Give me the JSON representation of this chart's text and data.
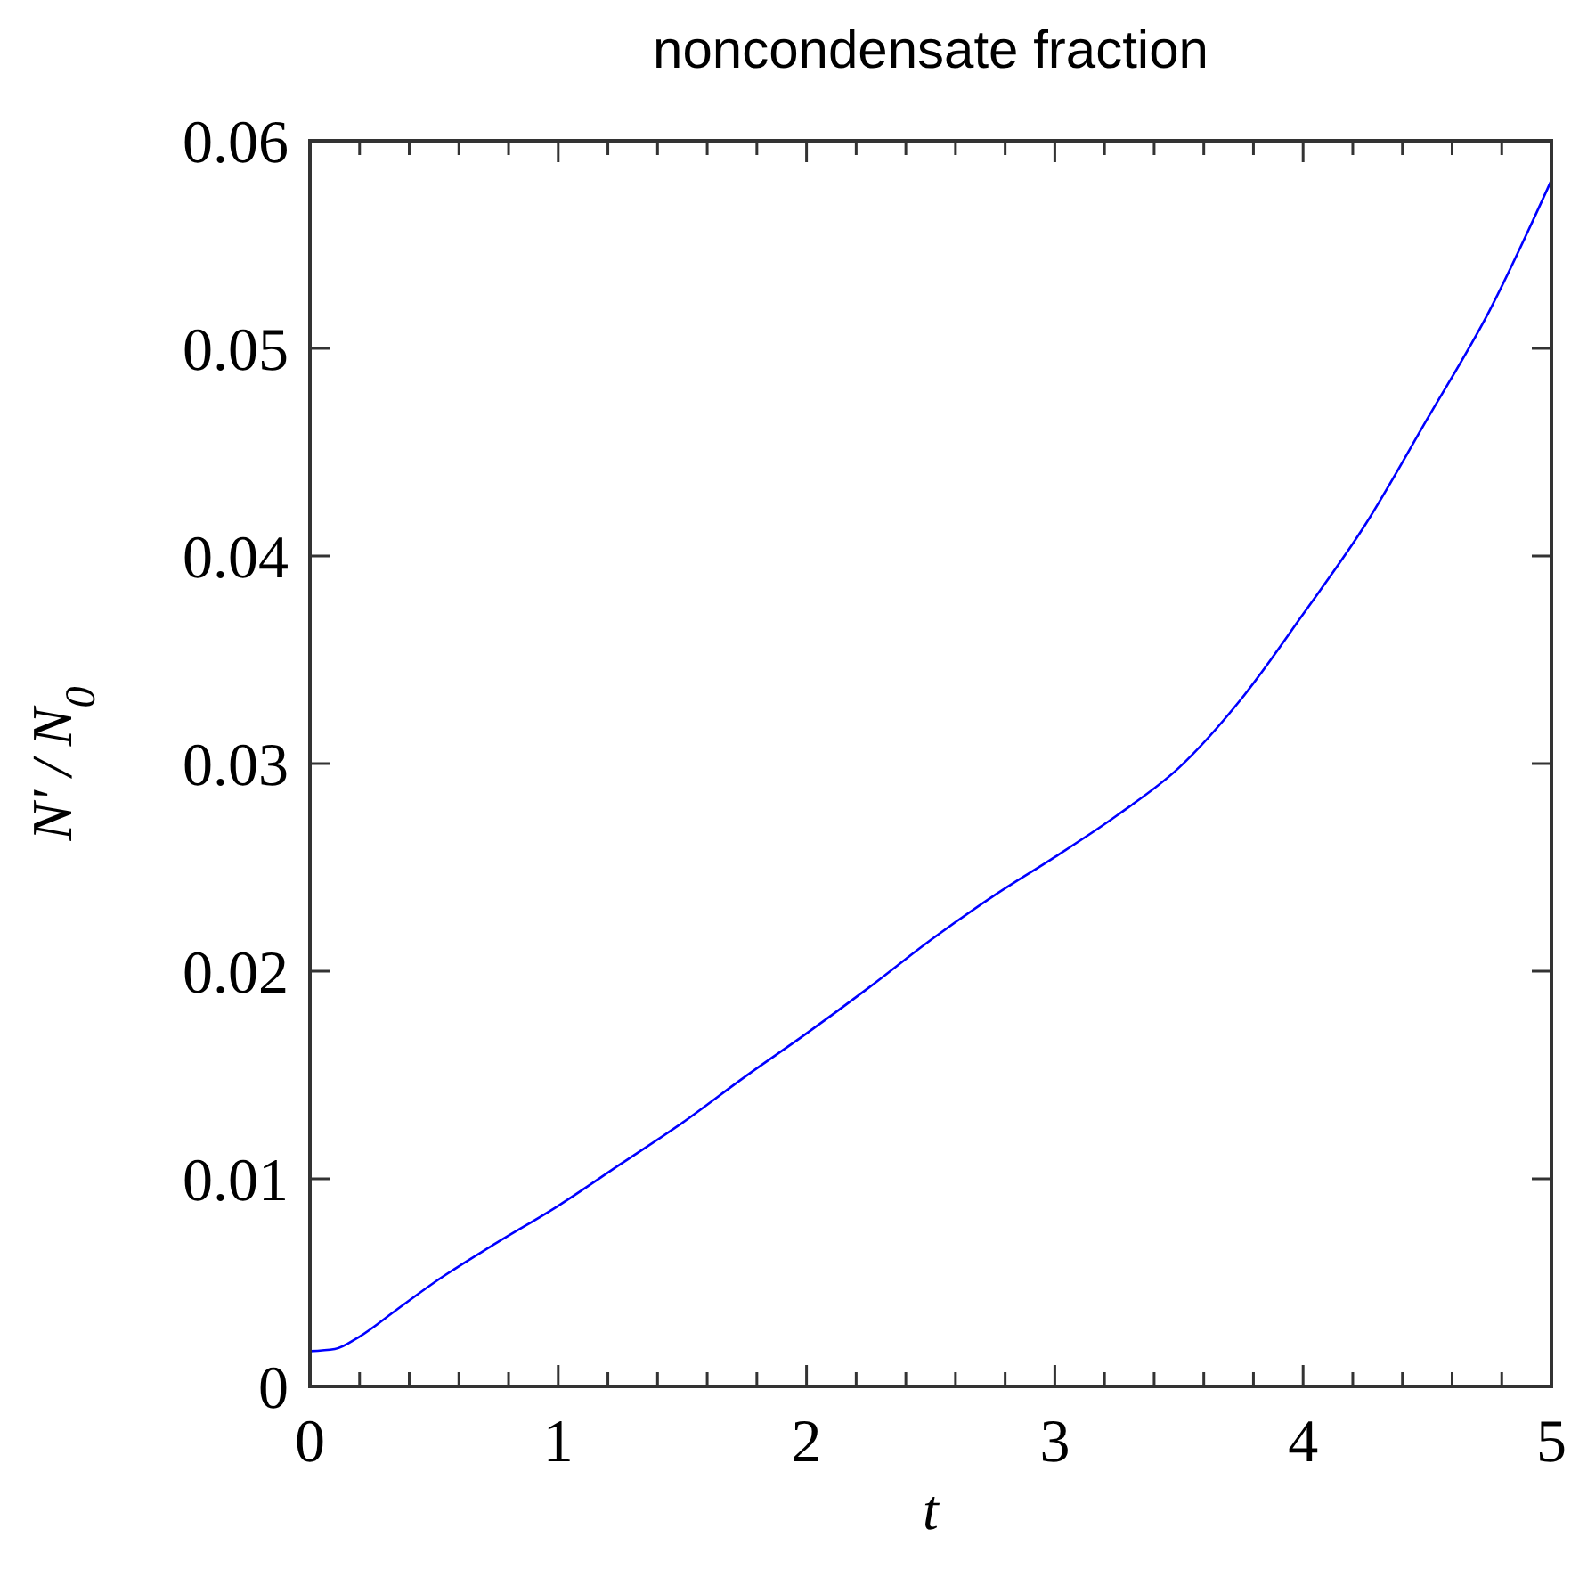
{
  "chart_data": {
    "type": "line",
    "title": "noncondensate fraction",
    "xlabel": "t",
    "ylabel": "N' / N$_{0}$",
    "xlim": [
      0,
      5
    ],
    "ylim": [
      0,
      0.06
    ],
    "xticks": [
      0,
      {
        "value": 0.2,
        "label": null
      },
      {
        "value": 0.4,
        "label": null
      },
      {
        "value": 0.6,
        "label": null
      },
      {
        "value": 0.8,
        "label": null
      },
      1,
      {
        "value": 1.2,
        "label": null
      },
      {
        "value": 1.4,
        "label": null
      },
      {
        "value": 1.6,
        "label": null
      },
      {
        "value": 1.8,
        "label": null
      },
      2,
      {
        "value": 2.2,
        "label": null
      },
      {
        "value": 2.4,
        "label": null
      },
      {
        "value": 2.6,
        "label": null
      },
      {
        "value": 2.8,
        "label": null
      },
      3,
      {
        "value": 3.2,
        "label": null
      },
      {
        "value": 3.4,
        "label": null
      },
      {
        "value": 3.6,
        "label": null
      },
      {
        "value": 3.8,
        "label": null
      },
      4,
      {
        "value": 4.2,
        "label": null
      },
      {
        "value": 4.4,
        "label": null
      },
      {
        "value": 4.6,
        "label": null
      },
      {
        "value": 4.8,
        "label": null
      },
      5
    ],
    "yticks": [
      0,
      0.01,
      0.02,
      0.03,
      0.04,
      0.05,
      0.06
    ],
    "x": [
      0,
      0.1,
      0.2,
      0.35,
      0.5,
      0.75,
      1,
      1.25,
      1.5,
      1.75,
      2,
      2.25,
      2.5,
      2.75,
      3,
      3.25,
      3.5,
      3.75,
      4,
      4.25,
      4.5,
      4.75,
      5
    ],
    "series": [
      {
        "color": "#0000ff",
        "values": [
          0.0017,
          0.0018,
          0.0024,
          0.0037,
          0.005,
          0.0069,
          0.0087,
          0.0107,
          0.0127,
          0.0149,
          0.017,
          0.0192,
          0.0215,
          0.0236,
          0.0255,
          0.0275,
          0.0298,
          0.0331,
          0.0372,
          0.0415,
          0.0466,
          0.0518,
          0.0581
        ]
      }
    ],
    "grid": false,
    "marker": "none",
    "line_style": "solid"
  }
}
